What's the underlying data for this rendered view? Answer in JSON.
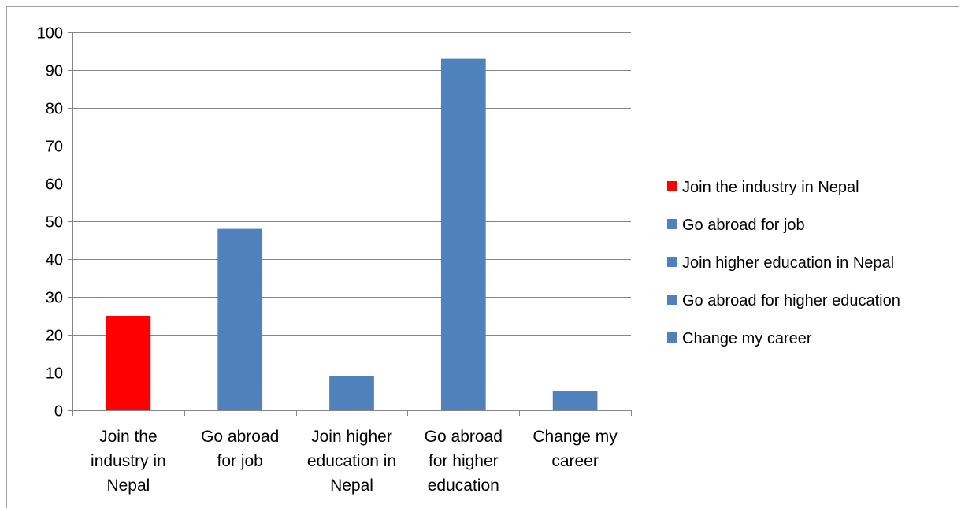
{
  "chart_data": {
    "type": "bar",
    "categories": [
      [
        "Join the",
        "industry in",
        "Nepal"
      ],
      [
        "Go abroad",
        "for job"
      ],
      [
        "Join higher",
        "education in",
        "Nepal"
      ],
      [
        "Go abroad",
        "for higher",
        "education"
      ],
      [
        "Change my",
        "career"
      ]
    ],
    "values": [
      25,
      48,
      9,
      93,
      5
    ],
    "colors": [
      "#ff0000",
      "#4f81bd",
      "#4f81bd",
      "#4f81bd",
      "#4f81bd"
    ],
    "ylim": [
      0,
      100
    ],
    "yticks": [
      0,
      10,
      20,
      30,
      40,
      50,
      60,
      70,
      80,
      90,
      100
    ],
    "grid": true,
    "legend": {
      "placement": "right",
      "entries": [
        {
          "label": "Join the industry in Nepal",
          "color": "#ff0000"
        },
        {
          "label": "Go abroad for job",
          "color": "#4f81bd"
        },
        {
          "label": "Join higher education in Nepal",
          "color": "#4f81bd"
        },
        {
          "label": "Go abroad for higher education",
          "color": "#4f81bd"
        },
        {
          "label": "Change my career",
          "color": "#4f81bd"
        }
      ]
    },
    "title": "",
    "xlabel": "",
    "ylabel": ""
  }
}
